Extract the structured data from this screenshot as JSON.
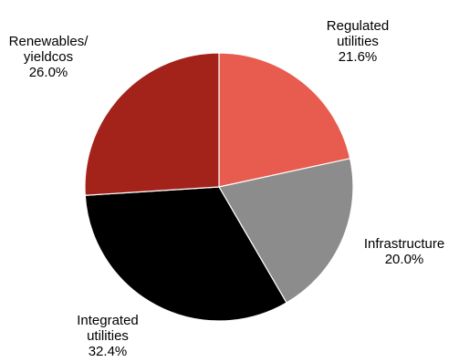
{
  "chart_data": {
    "type": "pie",
    "title": "",
    "start_angle_deg": 90,
    "direction": "clockwise",
    "slices": [
      {
        "label_lines": [
          "Regulated",
          "utilities"
        ],
        "value_label": "21.6%",
        "value": 21.6,
        "color": "#E85C4F"
      },
      {
        "label_lines": [
          "Infrastructure"
        ],
        "value_label": "20.0%",
        "value": 20.0,
        "color": "#8C8C8C"
      },
      {
        "label_lines": [
          "Integrated",
          "utilities"
        ],
        "value_label": "32.4%",
        "value": 32.4,
        "color": "#000000"
      },
      {
        "label_lines": [
          "Renewables/",
          "yieldcos"
        ],
        "value_label": "26.0%",
        "value": 26.0,
        "color": "#A3221A"
      }
    ]
  }
}
